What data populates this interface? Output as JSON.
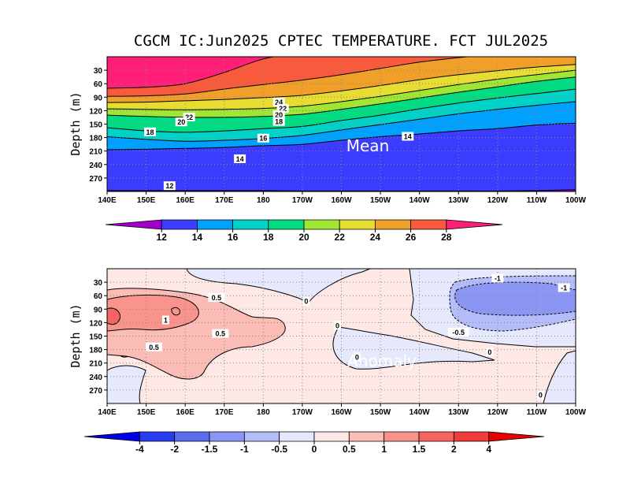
{
  "title": "CGCM IC:Jun2025 CPTEC TEMPERATURE. FCT JUL2025",
  "chart_data": [
    {
      "type": "heatmap",
      "name": "mean",
      "annotation": "Mean",
      "ylabel": "Depth (m)",
      "x_ticks": [
        "140E",
        "150E",
        "160E",
        "170E",
        "180",
        "170W",
        "160W",
        "150W",
        "140W",
        "130W",
        "120W",
        "110W",
        "100W"
      ],
      "y_ticks": [
        "30",
        "60",
        "90",
        "120",
        "150",
        "180",
        "210",
        "240",
        "270"
      ],
      "xlim": [
        140,
        260
      ],
      "ylim": [
        300,
        0
      ],
      "grid": true,
      "colorbar": {
        "labels": [
          "12",
          "14",
          "16",
          "18",
          "20",
          "22",
          "24",
          "26",
          "28"
        ],
        "colors": [
          "#a000c8",
          "#3c3cff",
          "#00a0ff",
          "#00d2c8",
          "#00dc82",
          "#a0e632",
          "#e6dc32",
          "#f0a028",
          "#fa5a3c",
          "#ff1e78"
        ]
      },
      "isotherms": [
        {
          "value": 28,
          "depth": [
            70,
            68,
            60,
            35,
            5,
            -10,
            -20,
            -30,
            -40,
            -50,
            -60,
            -70,
            -80
          ]
        },
        {
          "value": 26,
          "depth": [
            88,
            87,
            83,
            72,
            62,
            52,
            40,
            26,
            12,
            2,
            -5,
            -10,
            -15
          ]
        },
        {
          "value": 24,
          "depth": [
            102,
            101,
            98,
            95,
            91,
            86,
            76,
            64,
            51,
            40,
            31,
            23,
            17
          ]
        },
        {
          "value": 22,
          "depth": [
            116,
            117,
            118,
            117,
            115,
            110,
            100,
            88,
            75,
            62,
            50,
            40,
            30
          ]
        },
        {
          "value": 20,
          "depth": [
            130,
            133,
            135,
            135,
            133,
            128,
            117,
            105,
            92,
            79,
            67,
            55,
            45
          ]
        },
        {
          "value": 18,
          "depth": [
            158,
            165,
            168,
            165,
            160,
            155,
            142,
            130,
            116,
            103,
            92,
            82,
            72
          ]
        },
        {
          "value": 16,
          "depth": [
            178,
            184,
            188,
            186,
            182,
            175,
            163,
            151,
            139,
            127,
            117,
            108,
            100
          ]
        },
        {
          "value": 14,
          "depth": [
            207,
            206,
            204,
            202,
            198,
            195,
            186,
            178,
            172,
            165,
            160,
            152,
            148
          ]
        },
        {
          "value": 12,
          "depth": [
            298,
            298,
            298,
            298,
            298,
            299,
            299,
            299,
            299,
            299,
            299,
            298,
            296
          ]
        }
      ],
      "contour_labels": [
        {
          "text": "24",
          "lon": 184,
          "depth": 102
        },
        {
          "text": "22",
          "lon": 185,
          "depth": 116
        },
        {
          "text": "20",
          "lon": 184,
          "depth": 130
        },
        {
          "text": "18",
          "lon": 184,
          "depth": 145
        },
        {
          "text": "22",
          "lon": 161,
          "depth": 135
        },
        {
          "text": "20",
          "lon": 159,
          "depth": 146
        },
        {
          "text": "18",
          "lon": 151,
          "depth": 168
        },
        {
          "text": "16",
          "lon": 180,
          "depth": 182
        },
        {
          "text": "14",
          "lon": 174,
          "depth": 228
        },
        {
          "text": "14",
          "lon": 217,
          "depth": 178
        },
        {
          "text": "12",
          "lon": 156,
          "depth": 288
        }
      ]
    },
    {
      "type": "heatmap",
      "name": "anomaly",
      "annotation": "Anomaly",
      "ylabel": "Depth (m)",
      "x_ticks": [
        "140E",
        "150E",
        "160E",
        "170E",
        "180",
        "170W",
        "160W",
        "150W",
        "140W",
        "130W",
        "120W",
        "110W",
        "100W"
      ],
      "y_ticks": [
        "30",
        "60",
        "90",
        "120",
        "150",
        "180",
        "210",
        "240",
        "270"
      ],
      "xlim": [
        140,
        260
      ],
      "ylim": [
        300,
        0
      ],
      "grid": true,
      "colorbar": {
        "labels": [
          "-4",
          "-2",
          "-1.5",
          "-1",
          "-0.5",
          "0",
          "0.5",
          "1",
          "1.5",
          "2",
          "4"
        ],
        "colors": [
          "#0000e6",
          "#2a3cf0",
          "#5a6cf0",
          "#8c96f5",
          "#b4bcfa",
          "#e6e8fc",
          "#fde8e6",
          "#fcbcb6",
          "#f8948c",
          "#f56460",
          "#f03c3c",
          "#e60000"
        ]
      },
      "contour_labels": [
        {
          "text": "0.5",
          "lon": 168,
          "depth": 65
        },
        {
          "text": "1",
          "lon": 155,
          "depth": 115
        },
        {
          "text": "0.5",
          "lon": 169,
          "depth": 145
        },
        {
          "text": "0.5",
          "lon": 152,
          "depth": 175
        },
        {
          "text": "0",
          "lon": 191,
          "depth": 73
        },
        {
          "text": "0",
          "lon": 199,
          "depth": 127
        },
        {
          "text": "0",
          "lon": 204,
          "depth": 197
        },
        {
          "text": "0",
          "lon": 238,
          "depth": 186
        },
        {
          "text": "0",
          "lon": 251,
          "depth": 282
        },
        {
          "text": "-0.5",
          "lon": 230,
          "depth": 142
        },
        {
          "text": "-1",
          "lon": 240,
          "depth": 22
        },
        {
          "text": "-1",
          "lon": 257,
          "depth": 43
        }
      ]
    }
  ]
}
